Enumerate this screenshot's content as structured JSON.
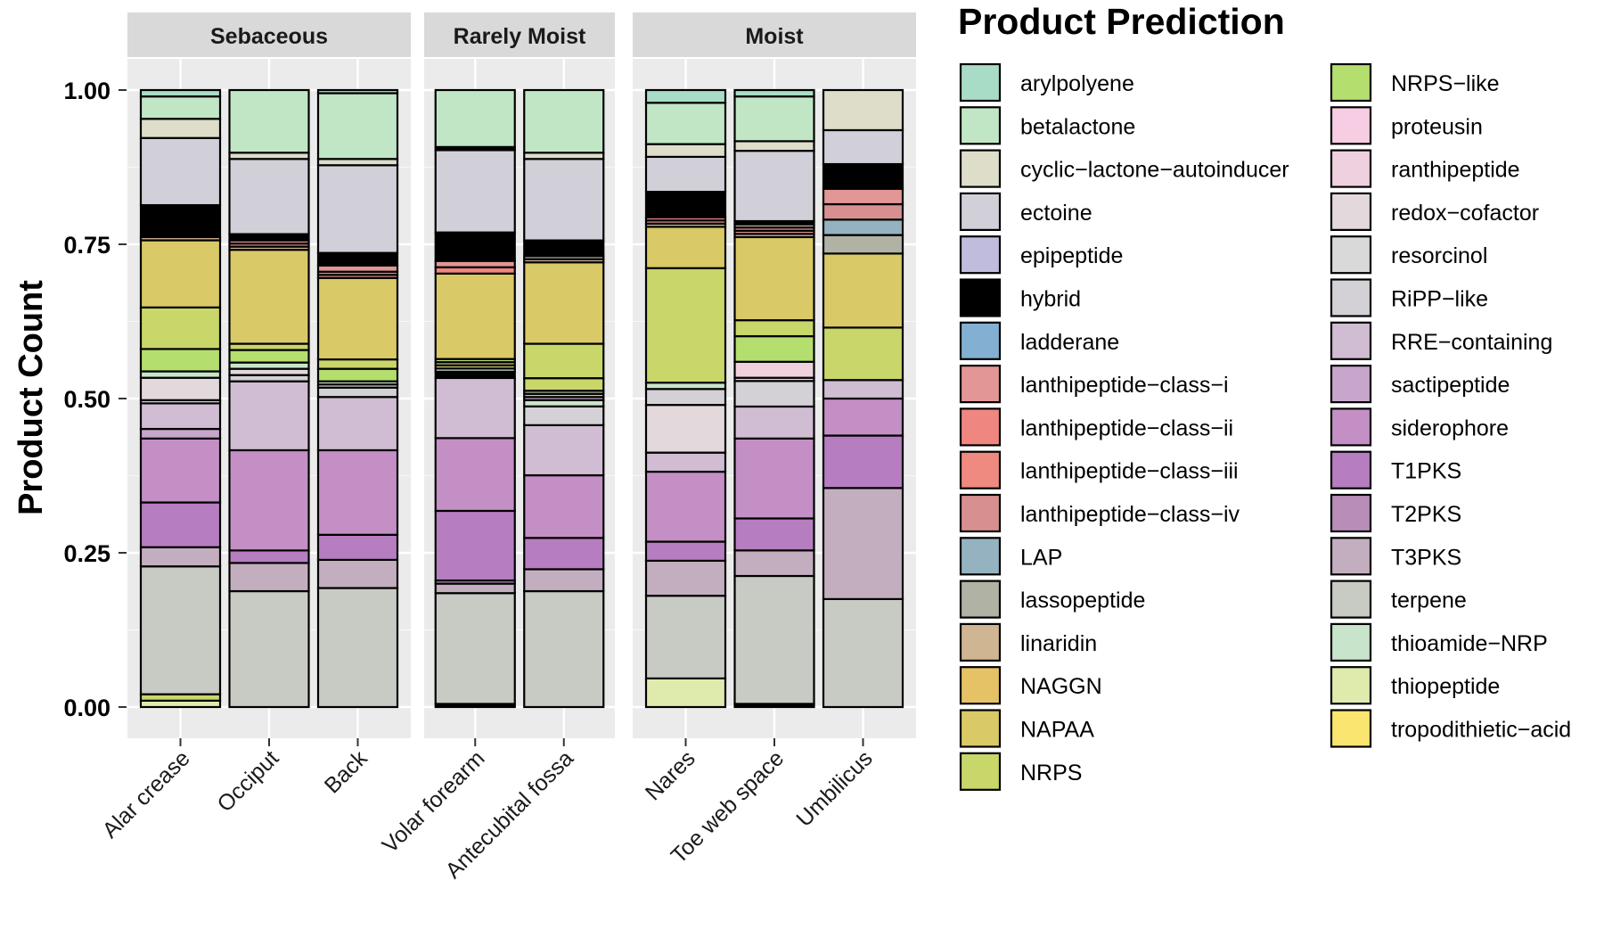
{
  "chart_data": {
    "type": "bar",
    "stacked": true,
    "normalized": true,
    "ylabel": "Product Count",
    "ylim": [
      0,
      1
    ],
    "y_ticks": [
      "0.00",
      "0.25",
      "0.50",
      "0.75",
      "1.00"
    ],
    "grid": true,
    "legend_title": "Product Prediction",
    "legend_position": "right",
    "facets": [
      {
        "label": "Sebaceous",
        "sites": [
          "Alar crease",
          "Occiput",
          "Back"
        ]
      },
      {
        "label": "Rarely Moist",
        "sites": [
          "Volar forearm",
          "Antecubital fossa"
        ]
      },
      {
        "label": "Moist",
        "sites": [
          "Nares",
          "Toe web space",
          "Umbilicus"
        ]
      }
    ],
    "legend": [
      {
        "name": "arylpolyene",
        "color": "#a8dcc6"
      },
      {
        "name": "betalactone",
        "color": "#c1e6c5"
      },
      {
        "name": "cyclic−lactone−autoinducer",
        "color": "#ddddca"
      },
      {
        "name": "ectoine",
        "color": "#d1d0d9"
      },
      {
        "name": "epipeptide",
        "color": "#c0bcdd"
      },
      {
        "name": "hybrid",
        "color": "#000000"
      },
      {
        "name": "ladderane",
        "color": "#83b0d2"
      },
      {
        "name": "lanthipeptide−class−i",
        "color": "#e29696"
      },
      {
        "name": "lanthipeptide−class−ii",
        "color": "#f08680"
      },
      {
        "name": "lanthipeptide−class−iii",
        "color": "#ee8a7f"
      },
      {
        "name": "lanthipeptide−class−iv",
        "color": "#d88f8f"
      },
      {
        "name": "LAP",
        "color": "#95b2c0"
      },
      {
        "name": "lassopeptide",
        "color": "#b0b2a4"
      },
      {
        "name": "linaridin",
        "color": "#cfb592"
      },
      {
        "name": "NAGGN",
        "color": "#e6c267"
      },
      {
        "name": "NAPAA",
        "color": "#d9c967"
      },
      {
        "name": "NRPS",
        "color": "#c9d66a"
      },
      {
        "name": "NRPS−like",
        "color": "#b4de6d"
      },
      {
        "name": "proteusin",
        "color": "#f6cde3"
      },
      {
        "name": "ranthipeptide",
        "color": "#efd0df"
      },
      {
        "name": "redox−cofactor",
        "color": "#e3d8dc"
      },
      {
        "name": "resorcinol",
        "color": "#d9d9d9"
      },
      {
        "name": "RiPP−like",
        "color": "#d3d0d6"
      },
      {
        "name": "RRE−containing",
        "color": "#d0bcd3"
      },
      {
        "name": "sactipeptide",
        "color": "#c8a6cc"
      },
      {
        "name": "siderophore",
        "color": "#c38fc5"
      },
      {
        "name": "T1PKS",
        "color": "#b67ec0"
      },
      {
        "name": "T2PKS",
        "color": "#b88eb8"
      },
      {
        "name": "T3PKS",
        "color": "#c3aebf"
      },
      {
        "name": "terpene",
        "color": "#c8cbc4"
      },
      {
        "name": "thioamide−NRP",
        "color": "#c8e4ca"
      },
      {
        "name": "thiopeptide",
        "color": "#deebad"
      },
      {
        "name": "tropodithietic−acid",
        "color": "#f9e570"
      }
    ],
    "bars": [
      {
        "site": "Alar crease",
        "segments": [
          {
            "product": "thiopeptide",
            "value": 0.01
          },
          {
            "product": "NRPS",
            "value": 0.01
          },
          {
            "product": "terpene",
            "value": 0.2
          },
          {
            "product": "T3PKS",
            "value": 0.03
          },
          {
            "product": "T1PKS",
            "value": 0.07
          },
          {
            "product": "siderophore",
            "value": 0.1
          },
          {
            "product": "sactipeptide",
            "value": 0.015
          },
          {
            "product": "RRE−containing",
            "value": 0.04
          },
          {
            "product": "RiPP−like",
            "value": 0.005
          },
          {
            "product": "redox−cofactor",
            "value": 0.035
          },
          {
            "product": "thioamide−NRP",
            "value": 0.01
          },
          {
            "product": "NRPS−like",
            "value": 0.035
          },
          {
            "product": "NRPS",
            "value": 0.065
          },
          {
            "product": "NAPAA",
            "value": 0.105
          },
          {
            "product": "linaridin",
            "value": 0.005
          },
          {
            "product": "hybrid",
            "value": 0.05
          },
          {
            "product": "ectoine",
            "value": 0.105
          },
          {
            "product": "cyclic−lactone−autoinducer",
            "value": 0.03
          },
          {
            "product": "betalactone",
            "value": 0.035
          },
          {
            "product": "arylpolyene",
            "value": 0.01
          }
        ]
      },
      {
        "site": "Occiput",
        "segments": [
          {
            "product": "terpene",
            "value": 0.185
          },
          {
            "product": "T3PKS",
            "value": 0.045
          },
          {
            "product": "T1PKS",
            "value": 0.02
          },
          {
            "product": "siderophore",
            "value": 0.16
          },
          {
            "product": "RRE−containing",
            "value": 0.11
          },
          {
            "product": "RiPP−like",
            "value": 0.01
          },
          {
            "product": "redox−cofactor",
            "value": 0.01
          },
          {
            "product": "thioamide−NRP",
            "value": 0.01
          },
          {
            "product": "NRPS−like",
            "value": 0.02
          },
          {
            "product": "NRPS",
            "value": 0.01
          },
          {
            "product": "NAPAA",
            "value": 0.15
          },
          {
            "product": "linaridin",
            "value": 0.005
          },
          {
            "product": "lanthipeptide−class−iv",
            "value": 0.005
          },
          {
            "product": "lanthipeptide−class−i",
            "value": 0.005
          },
          {
            "product": "hybrid",
            "value": 0.01
          },
          {
            "product": "ectoine",
            "value": 0.12
          },
          {
            "product": "cyclic−lactone−autoinducer",
            "value": 0.01
          },
          {
            "product": "betalactone",
            "value": 0.1
          }
        ]
      },
      {
        "site": "Back",
        "segments": [
          {
            "product": "terpene",
            "value": 0.19
          },
          {
            "product": "T3PKS",
            "value": 0.045
          },
          {
            "product": "T1PKS",
            "value": 0.04
          },
          {
            "product": "siderophore",
            "value": 0.135
          },
          {
            "product": "RRE−containing",
            "value": 0.085
          },
          {
            "product": "RiPP−like",
            "value": 0.015
          },
          {
            "product": "redox−cofactor",
            "value": 0.005
          },
          {
            "product": "thioamide−NRP",
            "value": 0.005
          },
          {
            "product": "NRPS−like",
            "value": 0.02
          },
          {
            "product": "NRPS",
            "value": 0.015
          },
          {
            "product": "NAPAA",
            "value": 0.13
          },
          {
            "product": "lanthipeptide−class−iv",
            "value": 0.005
          },
          {
            "product": "lanthipeptide−class−ii",
            "value": 0.005
          },
          {
            "product": "lanthipeptide−class−i",
            "value": 0.01
          },
          {
            "product": "hybrid",
            "value": 0.02
          },
          {
            "product": "ectoine",
            "value": 0.14
          },
          {
            "product": "cyclic−lactone−autoinducer",
            "value": 0.01
          },
          {
            "product": "betalactone",
            "value": 0.105
          },
          {
            "product": "arylpolyene",
            "value": 0.005
          }
        ]
      },
      {
        "site": "Volar forearm",
        "segments": [
          {
            "product": "hybrid",
            "value": 0.005
          },
          {
            "product": "terpene",
            "value": 0.175
          },
          {
            "product": "T3PKS",
            "value": 0.015
          },
          {
            "product": "T2PKS",
            "value": 0.005
          },
          {
            "product": "T1PKS",
            "value": 0.11
          },
          {
            "product": "siderophore",
            "value": 0.115
          },
          {
            "product": "RRE−containing",
            "value": 0.095
          },
          {
            "product": "hybrid",
            "value": 0.01
          },
          {
            "product": "thioamide−NRP",
            "value": 0.005
          },
          {
            "product": "NRPS",
            "value": 0.005
          },
          {
            "product": "linaridin",
            "value": 0.005
          },
          {
            "product": "NRPS−like",
            "value": 0.005
          },
          {
            "product": "NAPAA",
            "value": 0.135
          },
          {
            "product": "lanthipeptide−class−ii",
            "value": 0.01
          },
          {
            "product": "lanthipeptide−class−i",
            "value": 0.01
          },
          {
            "product": "hybrid",
            "value": 0.045
          },
          {
            "product": "ectoine",
            "value": 0.13
          },
          {
            "product": "hybrid",
            "value": 0.005
          },
          {
            "product": "betalactone",
            "value": 0.09
          }
        ]
      },
      {
        "site": "Antecubital fossa",
        "segments": [
          {
            "product": "terpene",
            "value": 0.185
          },
          {
            "product": "T3PKS",
            "value": 0.035
          },
          {
            "product": "T1PKS",
            "value": 0.05
          },
          {
            "product": "siderophore",
            "value": 0.1
          },
          {
            "product": "RRE−containing",
            "value": 0.08
          },
          {
            "product": "RiPP−like",
            "value": 0.03
          },
          {
            "product": "thioamide−NRP",
            "value": 0.01
          },
          {
            "product": "sactipeptide",
            "value": 0.005
          },
          {
            "product": "NRPS−like",
            "value": 0.005
          },
          {
            "product": "lassopeptide",
            "value": 0.005
          },
          {
            "product": "NRPS",
            "value": 0.02
          },
          {
            "product": "NRPS",
            "value": 0.055
          },
          {
            "product": "NAPAA",
            "value": 0.13
          },
          {
            "product": "linaridin",
            "value": 0.005
          },
          {
            "product": "lassopeptide",
            "value": 0.005
          },
          {
            "product": "hybrid",
            "value": 0.025
          },
          {
            "product": "ectoine",
            "value": 0.13
          },
          {
            "product": "cyclic−lactone−autoinducer",
            "value": 0.01
          },
          {
            "product": "betalactone",
            "value": 0.1
          }
        ]
      },
      {
        "site": "Nares",
        "segments": [
          {
            "product": "thiopeptide",
            "value": 0.045
          },
          {
            "product": "terpene",
            "value": 0.13
          },
          {
            "product": "T3PKS",
            "value": 0.055
          },
          {
            "product": "T1PKS",
            "value": 0.03
          },
          {
            "product": "siderophore",
            "value": 0.11
          },
          {
            "product": "RRE−containing",
            "value": 0.03
          },
          {
            "product": "redox−cofactor",
            "value": 0.075
          },
          {
            "product": "RiPP−like",
            "value": 0.025
          },
          {
            "product": "thioamide−NRP",
            "value": 0.01
          },
          {
            "product": "NRPS",
            "value": 0.18
          },
          {
            "product": "NAPAA",
            "value": 0.065
          },
          {
            "product": "linaridin",
            "value": 0.005
          },
          {
            "product": "lanthipeptide−class−iv",
            "value": 0.005
          },
          {
            "product": "lanthipeptide−class−ii",
            "value": 0.005
          },
          {
            "product": "hybrid",
            "value": 0.04
          },
          {
            "product": "ectoine",
            "value": 0.055
          },
          {
            "product": "cyclic−lactone−autoinducer",
            "value": 0.02
          },
          {
            "product": "betalactone",
            "value": 0.065
          },
          {
            "product": "arylpolyene",
            "value": 0.02
          }
        ]
      },
      {
        "site": "Toe web space",
        "segments": [
          {
            "product": "hybrid",
            "value": 0.005
          },
          {
            "product": "terpene",
            "value": 0.2
          },
          {
            "product": "T3PKS",
            "value": 0.04
          },
          {
            "product": "T1PKS",
            "value": 0.05
          },
          {
            "product": "siderophore",
            "value": 0.125
          },
          {
            "product": "RRE−containing",
            "value": 0.05
          },
          {
            "product": "RiPP−like",
            "value": 0.04
          },
          {
            "product": "redox−cofactor",
            "value": 0.005
          },
          {
            "product": "ranthipeptide",
            "value": 0.025
          },
          {
            "product": "NRPS−like",
            "value": 0.04
          },
          {
            "product": "NRPS",
            "value": 0.025
          },
          {
            "product": "NAPAA",
            "value": 0.13
          },
          {
            "product": "linaridin",
            "value": 0.005
          },
          {
            "product": "lanthipeptide−class−iv",
            "value": 0.005
          },
          {
            "product": "lanthipeptide−class−i",
            "value": 0.005
          },
          {
            "product": "lassopeptide",
            "value": 0.005
          },
          {
            "product": "hybrid",
            "value": 0.005
          },
          {
            "product": "ectoine",
            "value": 0.11
          },
          {
            "product": "cyclic−lactone−autoinducer",
            "value": 0.015
          },
          {
            "product": "betalactone",
            "value": 0.07
          },
          {
            "product": "arylpolyene",
            "value": 0.01
          }
        ]
      },
      {
        "site": "Umbilicus",
        "segments": [
          {
            "product": "terpene",
            "value": 0.175
          },
          {
            "product": "T3PKS",
            "value": 0.18
          },
          {
            "product": "T1PKS",
            "value": 0.085
          },
          {
            "product": "siderophore",
            "value": 0.06
          },
          {
            "product": "RRE−containing",
            "value": 0.03
          },
          {
            "product": "NRPS",
            "value": 0.085
          },
          {
            "product": "NAPAA",
            "value": 0.12
          },
          {
            "product": "lassopeptide",
            "value": 0.03
          },
          {
            "product": "LAP",
            "value": 0.025
          },
          {
            "product": "lanthipeptide−class−iv",
            "value": 0.025
          },
          {
            "product": "lanthipeptide−class−i",
            "value": 0.025
          },
          {
            "product": "hybrid",
            "value": 0.04
          },
          {
            "product": "ectoine",
            "value": 0.055
          },
          {
            "product": "cyclic−lactone−autoinducer",
            "value": 0.065
          }
        ]
      }
    ]
  }
}
